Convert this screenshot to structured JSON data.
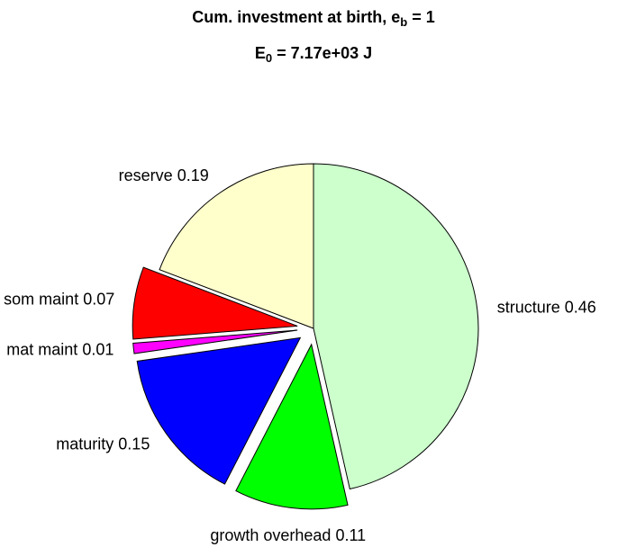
{
  "chart_data": {
    "type": "pie",
    "title": {
      "text": "Cum. investment at birth, e",
      "sub": "b",
      "after": " = 1"
    },
    "subtitle": {
      "text": "E",
      "sub": "0",
      "after": " = 7.17e+03 J"
    },
    "categories": [
      "structure",
      "growth overhead",
      "maturity",
      "mat maint",
      "som maint",
      "reserve"
    ],
    "values": [
      0.46,
      0.11,
      0.15,
      0.01,
      0.07,
      0.19
    ],
    "colors": [
      "#ccffcc",
      "#00ff00",
      "#0000ff",
      "#ff00ff",
      "#ff0000",
      "#ffffcc"
    ],
    "explode": [
      false,
      true,
      true,
      true,
      true,
      false
    ]
  }
}
